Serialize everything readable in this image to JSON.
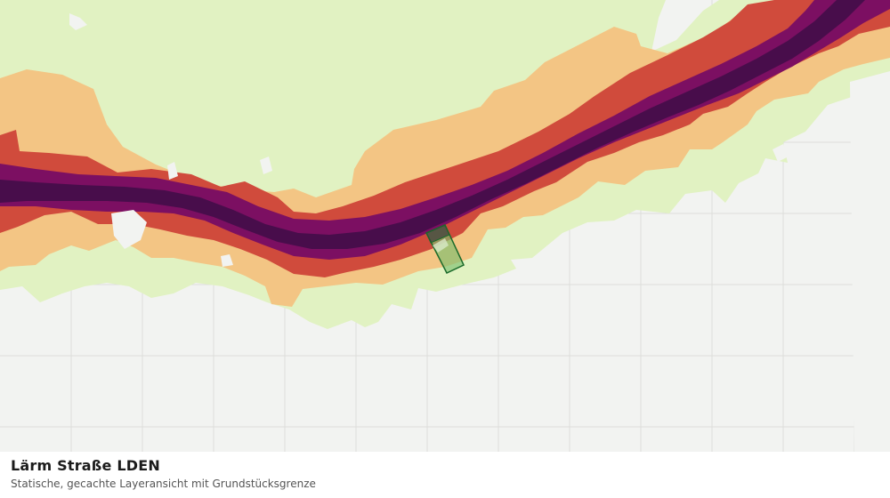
{
  "map": {
    "layer": "Lärm Straße LDEN",
    "colors": {
      "background": "#f2f3f1",
      "grid": "#dddedb",
      "green": "#e1f2c2",
      "orange": "#f3c584",
      "red": "#d04b3c",
      "magenta": "#7c0f62",
      "dark": "#480d4b",
      "parcel_fill": "#7dbe6e",
      "parcel_stroke": "#1a6a2a"
    },
    "features": {
      "noise_bands": [
        "noise-band-outer-green",
        "noise-band-orange",
        "noise-band-red",
        "noise-band-magenta",
        "noise-band-core"
      ],
      "parcel": "parcel-boundary"
    }
  },
  "caption": {
    "title": "Lärm Straße LDEN",
    "subtitle": "Statische, gecachte Layeransicht mit Grundstücksgrenze"
  }
}
